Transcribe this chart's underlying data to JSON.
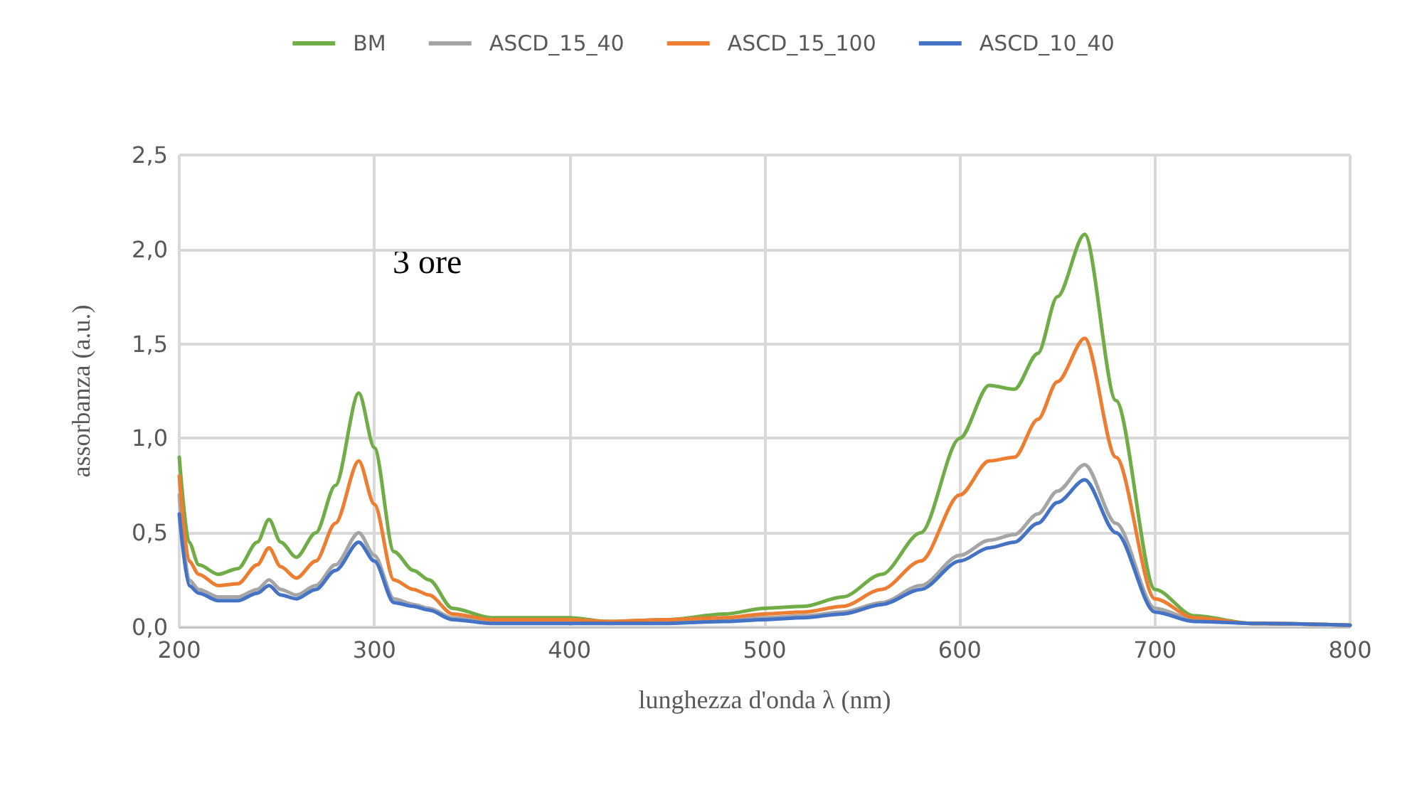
{
  "chart_data": {
    "type": "line",
    "xlabel": "lunghezza d'onda λ (nm)",
    "ylabel": "assorbanza (a.u.)",
    "annotations": [
      "3 ore"
    ],
    "x": [
      200,
      205,
      210,
      220,
      230,
      240,
      246,
      252,
      260,
      270,
      280,
      292,
      300,
      310,
      320,
      328,
      340,
      360,
      380,
      400,
      420,
      450,
      480,
      500,
      520,
      540,
      560,
      580,
      600,
      615,
      628,
      640,
      650,
      664,
      680,
      700,
      720,
      750,
      800
    ],
    "series": [
      {
        "name": "BM",
        "color": "#70ad47",
        "values": [
          0.9,
          0.45,
          0.33,
          0.28,
          0.31,
          0.45,
          0.57,
          0.45,
          0.37,
          0.5,
          0.75,
          1.24,
          0.95,
          0.4,
          0.3,
          0.25,
          0.1,
          0.05,
          0.05,
          0.05,
          0.03,
          0.04,
          0.07,
          0.1,
          0.11,
          0.16,
          0.28,
          0.5,
          1.0,
          1.28,
          1.26,
          1.45,
          1.75,
          2.08,
          1.2,
          0.2,
          0.06,
          0.02,
          0.01
        ]
      },
      {
        "name": "ASCD_15_40",
        "color": "#a5a5a5",
        "values": [
          0.7,
          0.25,
          0.2,
          0.16,
          0.16,
          0.2,
          0.25,
          0.2,
          0.17,
          0.22,
          0.33,
          0.5,
          0.38,
          0.15,
          0.12,
          0.1,
          0.05,
          0.03,
          0.03,
          0.03,
          0.02,
          0.03,
          0.04,
          0.05,
          0.06,
          0.08,
          0.13,
          0.22,
          0.38,
          0.46,
          0.49,
          0.6,
          0.72,
          0.86,
          0.55,
          0.1,
          0.04,
          0.02,
          0.01
        ]
      },
      {
        "name": "ASCD_15_100",
        "color": "#ed7d31",
        "values": [
          0.8,
          0.35,
          0.28,
          0.22,
          0.23,
          0.33,
          0.42,
          0.32,
          0.26,
          0.35,
          0.55,
          0.88,
          0.65,
          0.25,
          0.2,
          0.17,
          0.07,
          0.04,
          0.04,
          0.04,
          0.03,
          0.04,
          0.05,
          0.07,
          0.08,
          0.11,
          0.2,
          0.35,
          0.7,
          0.88,
          0.9,
          1.1,
          1.3,
          1.53,
          0.9,
          0.15,
          0.05,
          0.02,
          0.01
        ]
      },
      {
        "name": "ASCD_10_40",
        "color": "#4472c4",
        "values": [
          0.6,
          0.22,
          0.18,
          0.14,
          0.14,
          0.18,
          0.22,
          0.17,
          0.15,
          0.2,
          0.3,
          0.45,
          0.35,
          0.13,
          0.11,
          0.09,
          0.04,
          0.02,
          0.02,
          0.02,
          0.02,
          0.02,
          0.03,
          0.04,
          0.05,
          0.07,
          0.12,
          0.2,
          0.35,
          0.42,
          0.45,
          0.55,
          0.66,
          0.78,
          0.5,
          0.08,
          0.03,
          0.02,
          0.01
        ]
      }
    ],
    "xlim": [
      200,
      800
    ],
    "xticks": [
      200,
      300,
      400,
      500,
      600,
      700,
      800
    ],
    "ylim": [
      0,
      2.5
    ],
    "yticks": [
      {
        "value": 0,
        "label": "0,0"
      },
      {
        "value": 0.5,
        "label": "0,5"
      },
      {
        "value": 1,
        "label": "1,0"
      },
      {
        "value": 1.5,
        "label": "1,5"
      },
      {
        "value": 2,
        "label": "2,0"
      },
      {
        "value": 2.5,
        "label": "2,5"
      }
    ],
    "grid": true,
    "legend": "top",
    "marker": "none",
    "line_style": "solid"
  }
}
